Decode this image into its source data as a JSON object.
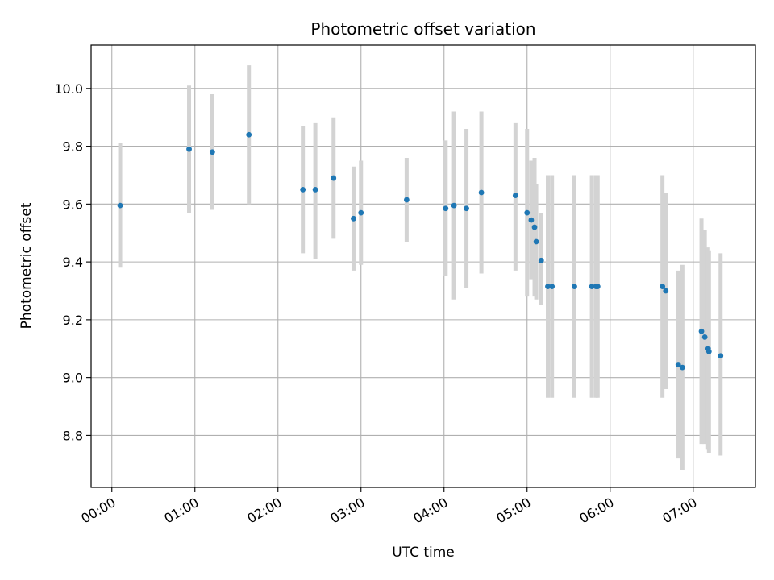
{
  "chart_data": {
    "type": "scatter",
    "title": "Photometric offset variation",
    "xlabel": "UTC time",
    "ylabel": "Photometric offset",
    "x_unit": "hours UTC",
    "xlim": [
      -0.25,
      7.75
    ],
    "ylim": [
      8.62,
      10.15
    ],
    "x_ticks": [
      {
        "value": 0,
        "label": "00:00"
      },
      {
        "value": 1,
        "label": "01:00"
      },
      {
        "value": 2,
        "label": "02:00"
      },
      {
        "value": 3,
        "label": "03:00"
      },
      {
        "value": 4,
        "label": "04:00"
      },
      {
        "value": 5,
        "label": "05:00"
      },
      {
        "value": 6,
        "label": "06:00"
      },
      {
        "value": 7,
        "label": "07:00"
      }
    ],
    "y_ticks": [
      {
        "value": 8.8,
        "label": "8.8"
      },
      {
        "value": 9.0,
        "label": "9.0"
      },
      {
        "value": 9.2,
        "label": "9.2"
      },
      {
        "value": 9.4,
        "label": "9.4"
      },
      {
        "value": 9.6,
        "label": "9.6"
      },
      {
        "value": 9.8,
        "label": "9.8"
      },
      {
        "value": 10.0,
        "label": "10.0"
      }
    ],
    "grid": true,
    "colors": {
      "point": "#1f77b4",
      "errorbar": "#d3d3d3",
      "grid": "#b0b0b0"
    },
    "points": [
      {
        "x": 0.1,
        "y": 9.595,
        "lo": 9.38,
        "hi": 9.81
      },
      {
        "x": 0.93,
        "y": 9.79,
        "lo": 9.57,
        "hi": 10.01
      },
      {
        "x": 1.21,
        "y": 9.78,
        "lo": 9.58,
        "hi": 9.98
      },
      {
        "x": 1.65,
        "y": 9.84,
        "lo": 9.6,
        "hi": 10.08
      },
      {
        "x": 2.3,
        "y": 9.65,
        "lo": 9.43,
        "hi": 9.87
      },
      {
        "x": 2.45,
        "y": 9.65,
        "lo": 9.41,
        "hi": 9.88
      },
      {
        "x": 2.67,
        "y": 9.69,
        "lo": 9.48,
        "hi": 9.9
      },
      {
        "x": 2.91,
        "y": 9.55,
        "lo": 9.37,
        "hi": 9.73
      },
      {
        "x": 3.0,
        "y": 9.57,
        "lo": 9.39,
        "hi": 9.75
      },
      {
        "x": 3.55,
        "y": 9.615,
        "lo": 9.47,
        "hi": 9.76
      },
      {
        "x": 4.02,
        "y": 9.585,
        "lo": 9.35,
        "hi": 9.82
      },
      {
        "x": 4.12,
        "y": 9.595,
        "lo": 9.27,
        "hi": 9.92
      },
      {
        "x": 4.27,
        "y": 9.585,
        "lo": 9.31,
        "hi": 9.86
      },
      {
        "x": 4.45,
        "y": 9.64,
        "lo": 9.36,
        "hi": 9.92
      },
      {
        "x": 4.86,
        "y": 9.63,
        "lo": 9.37,
        "hi": 9.88
      },
      {
        "x": 5.0,
        "y": 9.57,
        "lo": 9.28,
        "hi": 9.86
      },
      {
        "x": 5.05,
        "y": 9.545,
        "lo": 9.34,
        "hi": 9.75
      },
      {
        "x": 5.09,
        "y": 9.52,
        "lo": 9.28,
        "hi": 9.76
      },
      {
        "x": 5.11,
        "y": 9.47,
        "lo": 9.27,
        "hi": 9.67
      },
      {
        "x": 5.17,
        "y": 9.405,
        "lo": 9.25,
        "hi": 9.57
      },
      {
        "x": 5.25,
        "y": 9.315,
        "lo": 8.93,
        "hi": 9.7
      },
      {
        "x": 5.3,
        "y": 9.315,
        "lo": 8.93,
        "hi": 9.7
      },
      {
        "x": 5.57,
        "y": 9.315,
        "lo": 8.93,
        "hi": 9.7
      },
      {
        "x": 5.78,
        "y": 9.315,
        "lo": 8.93,
        "hi": 9.7
      },
      {
        "x": 5.83,
        "y": 9.315,
        "lo": 8.93,
        "hi": 9.7
      },
      {
        "x": 5.85,
        "y": 9.315,
        "lo": 8.93,
        "hi": 9.7
      },
      {
        "x": 6.63,
        "y": 9.315,
        "lo": 8.93,
        "hi": 9.7
      },
      {
        "x": 6.67,
        "y": 9.3,
        "lo": 8.96,
        "hi": 9.64
      },
      {
        "x": 6.82,
        "y": 9.045,
        "lo": 8.72,
        "hi": 9.37
      },
      {
        "x": 6.87,
        "y": 9.035,
        "lo": 8.68,
        "hi": 9.39
      },
      {
        "x": 7.1,
        "y": 9.16,
        "lo": 8.77,
        "hi": 9.55
      },
      {
        "x": 7.14,
        "y": 9.14,
        "lo": 8.77,
        "hi": 9.51
      },
      {
        "x": 7.18,
        "y": 9.1,
        "lo": 8.75,
        "hi": 9.45
      },
      {
        "x": 7.19,
        "y": 9.09,
        "lo": 8.74,
        "hi": 9.44
      },
      {
        "x": 7.33,
        "y": 9.075,
        "lo": 8.73,
        "hi": 9.43
      }
    ]
  }
}
